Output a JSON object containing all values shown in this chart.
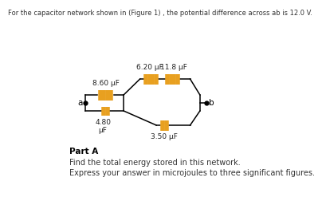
{
  "title_text": "For the capacitor network shown in (Figure 1) , the potential difference across ab is 12.0 V.",
  "part_label": "Part A",
  "part_a_line1": "Find the total energy stored in this network.",
  "part_a_line2": "Express your answer in microjoules to three significant figures.",
  "cap_color": "#E8A020",
  "line_color": "#000000",
  "background": "#ffffff",
  "label_860": "8.60 μF",
  "label_480": "4.80\nμF",
  "label_620": "6.20 μF",
  "label_118": "11.8 μF",
  "label_350": "3.50 μF",
  "label_a": "a",
  "label_b": "b"
}
